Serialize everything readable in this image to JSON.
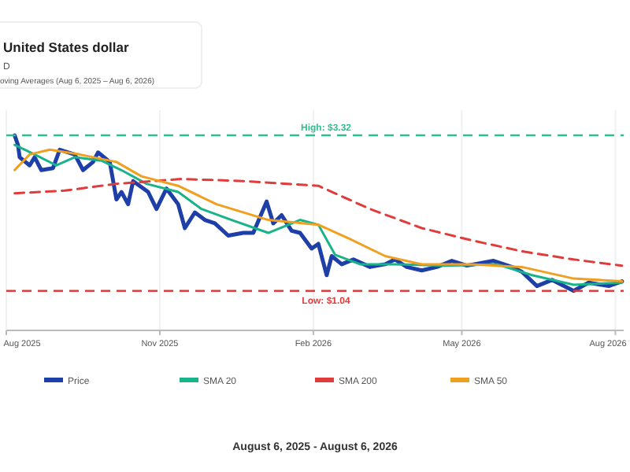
{
  "chart_data": {
    "type": "line",
    "title": "United States dollar",
    "subtitle": "D",
    "annotations": [
      "oving Averages (Aug 6, 2025 – Aug 6, 2026)",
      "August 6, 2025 - August 6, 2026"
    ],
    "xlim": [
      "2025-08-01",
      "2026-08-06"
    ],
    "xticks": [
      {
        "value": "2025-08-01",
        "label": "Aug 2025"
      },
      {
        "value": "2025-11-01",
        "label": "Nov 2025"
      },
      {
        "value": "2026-02-01",
        "label": "Feb 2026"
      },
      {
        "value": "2026-05-01",
        "label": "May 2026"
      },
      {
        "value": "2026-08-01",
        "label": "Aug 2026"
      }
    ],
    "ylim": [
      0.46,
      3.69
    ],
    "tick_labels": "x",
    "grid": "x",
    "legend": "bottom",
    "series": [
      {
        "name": "Price",
        "color": "#1f3fa8",
        "line_style": "solid",
        "x": [
          "2025-08-06",
          "2025-08-08",
          "2025-08-09",
          "2025-08-15",
          "2025-08-18",
          "2025-08-22",
          "2025-08-29",
          "2025-09-02",
          "2025-09-11",
          "2025-09-16",
          "2025-09-22",
          "2025-09-25",
          "2025-10-02",
          "2025-10-06",
          "2025-10-09",
          "2025-10-13",
          "2025-10-16",
          "2025-10-25",
          "2025-10-30",
          "2025-11-05",
          "2025-11-12",
          "2025-11-16",
          "2025-11-22",
          "2025-11-28",
          "2025-12-04",
          "2025-12-12",
          "2025-12-21",
          "2025-12-27",
          "2026-01-04",
          "2026-01-08",
          "2026-01-13",
          "2026-01-19",
          "2026-01-24",
          "2026-01-31",
          "2026-02-04",
          "2026-02-09",
          "2026-02-12",
          "2026-02-18",
          "2026-02-25",
          "2026-03-07",
          "2026-03-16",
          "2026-03-22",
          "2026-03-29",
          "2026-04-07",
          "2026-04-16",
          "2026-04-25",
          "2026-05-04",
          "2026-05-20",
          "2026-05-31",
          "2026-06-06",
          "2026-06-15",
          "2026-06-24",
          "2026-07-07",
          "2026-07-16",
          "2026-07-28",
          "2026-08-05"
        ],
        "values": [
          3.32,
          3.18,
          3.0,
          2.88,
          3.0,
          2.81,
          2.84,
          3.11,
          3.04,
          2.81,
          2.93,
          3.07,
          2.93,
          2.38,
          2.49,
          2.31,
          2.65,
          2.49,
          2.24,
          2.54,
          2.31,
          1.96,
          2.19,
          2.08,
          2.03,
          1.85,
          1.89,
          1.89,
          2.35,
          2.03,
          2.15,
          1.92,
          1.89,
          1.66,
          1.73,
          1.27,
          1.55,
          1.43,
          1.5,
          1.39,
          1.43,
          1.5,
          1.39,
          1.34,
          1.39,
          1.48,
          1.41,
          1.48,
          1.39,
          1.32,
          1.11,
          1.2,
          1.04,
          1.16,
          1.11,
          1.18
        ]
      },
      {
        "name": "SMA 20",
        "color": "#19b38a",
        "line_style": "solid",
        "x": [
          "2025-08-06",
          "2025-08-18",
          "2025-08-31",
          "2025-09-11",
          "2025-09-27",
          "2025-10-09",
          "2025-10-24",
          "2025-11-12",
          "2025-11-26",
          "2025-12-14",
          "2026-01-05",
          "2026-01-24",
          "2026-02-04",
          "2026-02-14",
          "2026-03-01",
          "2026-03-22",
          "2026-04-21",
          "2026-05-22",
          "2026-06-12",
          "2026-07-07",
          "2026-08-05"
        ],
        "values": [
          3.18,
          3.04,
          2.88,
          3.0,
          2.95,
          2.81,
          2.61,
          2.49,
          2.24,
          2.08,
          1.89,
          2.08,
          2.01,
          1.57,
          1.43,
          1.43,
          1.41,
          1.43,
          1.27,
          1.13,
          1.16
        ]
      },
      {
        "name": "SMA 200",
        "color": "#e03c3c",
        "line_style": "dashed",
        "x": [
          "2025-08-06",
          "2025-09-05",
          "2025-10-06",
          "2025-11-14",
          "2025-12-21",
          "2026-02-04",
          "2026-03-07",
          "2026-04-07",
          "2026-05-07",
          "2026-06-06",
          "2026-07-07",
          "2026-08-05"
        ],
        "values": [
          2.47,
          2.51,
          2.61,
          2.68,
          2.65,
          2.58,
          2.24,
          1.96,
          1.78,
          1.62,
          1.5,
          1.41
        ]
      },
      {
        "name": "SMA 50",
        "color": "#f0a020",
        "line_style": "solid",
        "x": [
          "2025-08-06",
          "2025-08-15",
          "2025-08-27",
          "2025-09-14",
          "2025-10-06",
          "2025-10-21",
          "2025-11-12",
          "2025-12-05",
          "2026-01-05",
          "2026-02-04",
          "2026-02-23",
          "2026-03-16",
          "2026-04-07",
          "2026-05-07",
          "2026-06-06",
          "2026-07-07",
          "2026-08-05"
        ],
        "values": [
          2.81,
          3.04,
          3.11,
          3.04,
          2.93,
          2.72,
          2.58,
          2.31,
          2.08,
          2.01,
          1.8,
          1.55,
          1.43,
          1.43,
          1.39,
          1.22,
          1.18
        ]
      }
    ],
    "ref_lines": [
      {
        "axis": "y",
        "value": 3.32,
        "label": "High: $3.32",
        "color": "#2fbf8f",
        "line_style": "dashed"
      },
      {
        "axis": "y",
        "value": 1.04,
        "label": "Low: $1.04",
        "color": "#e03c3c",
        "line_style": "dashed"
      }
    ]
  }
}
